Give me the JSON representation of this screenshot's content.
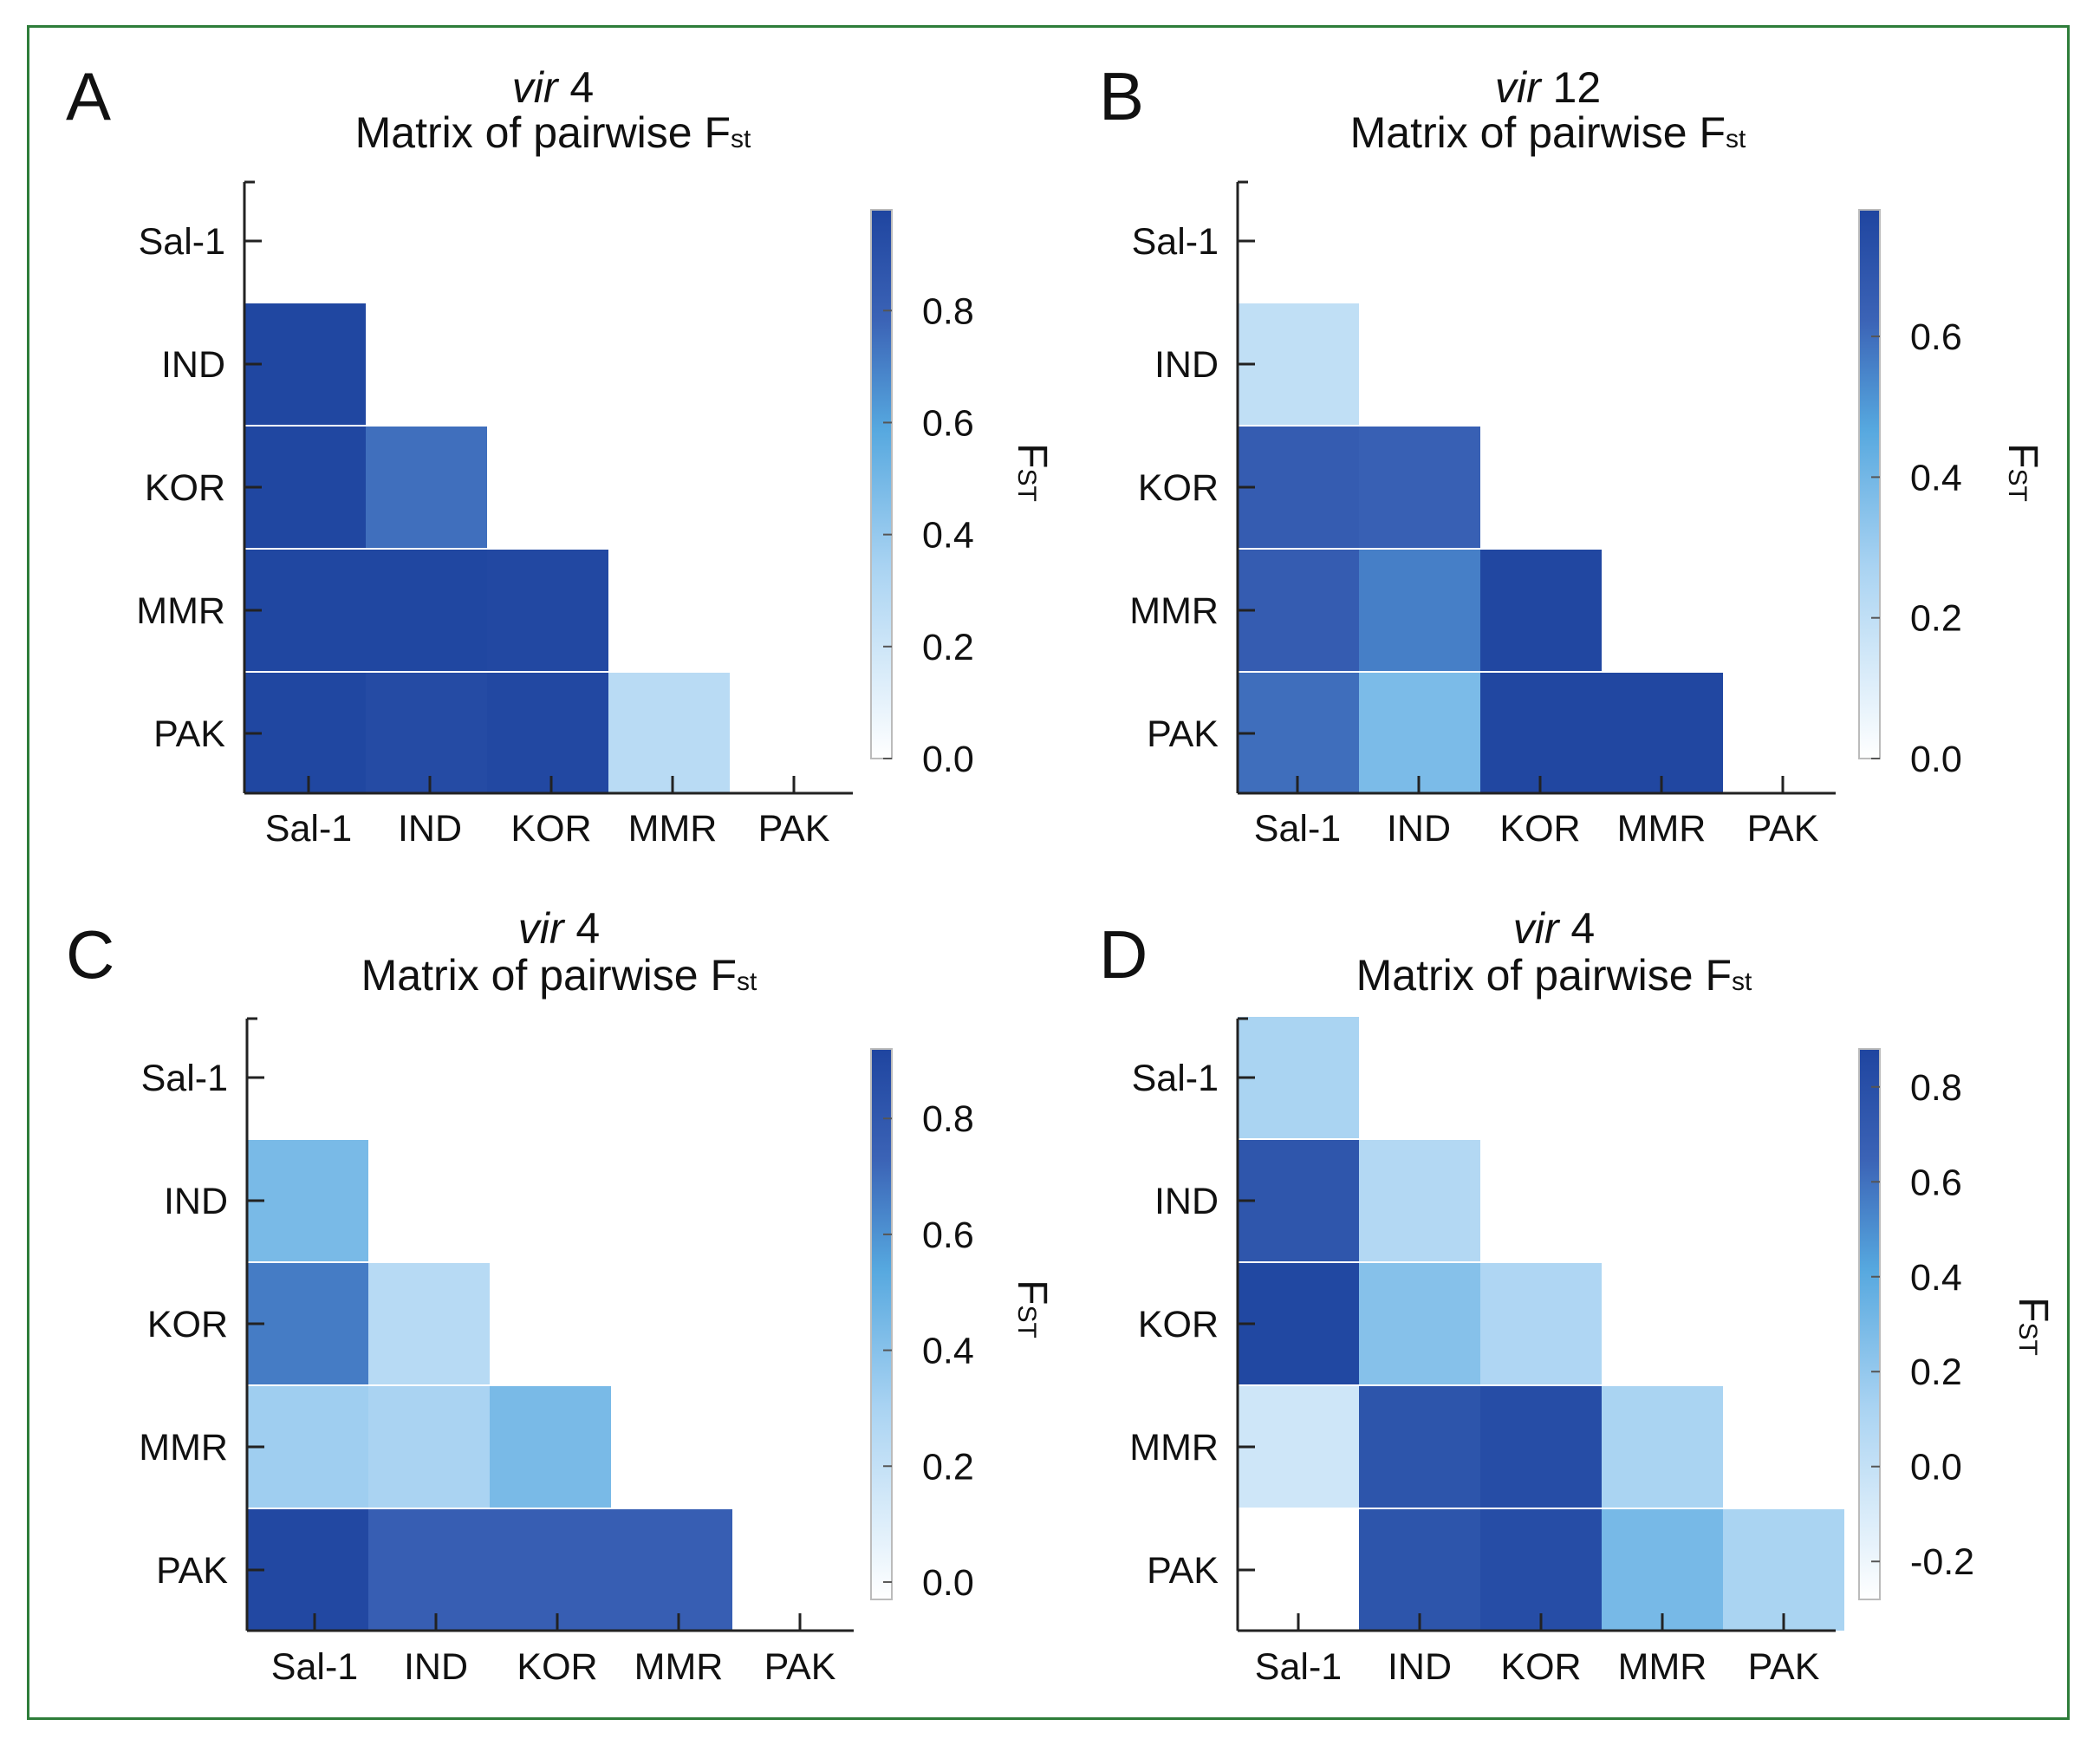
{
  "colors": {
    "frame": "#2e7d3a",
    "low": "#ffffff",
    "high": "#1f45a0",
    "axis": "#222222"
  },
  "charts": [
    {
      "panel_label": "A",
      "gene_italic": "vir",
      "gene_num": "4",
      "title_main": "Matrix of pairwise F",
      "title_sub": "st",
      "colorbar_label_main": "F",
      "colorbar_label_sub": "ST",
      "x_tick_labels": [
        "Sal-1",
        "IND",
        "KOR",
        "MMR",
        "PAK"
      ],
      "y_tick_labels": [
        "Sal-1",
        "IND",
        "KOR",
        "MMR",
        "PAK"
      ],
      "colorbar_tick_labels": [
        "0.0",
        "0.2",
        "0.4",
        "0.6",
        "0.8"
      ]
    },
    {
      "panel_label": "B",
      "gene_italic": "vir",
      "gene_num": "12",
      "title_main": "Matrix of pairwise F",
      "title_sub": "st",
      "colorbar_label_main": "F",
      "colorbar_label_sub": "ST",
      "x_tick_labels": [
        "Sal-1",
        "IND",
        "KOR",
        "MMR",
        "PAK"
      ],
      "y_tick_labels": [
        "Sal-1",
        "IND",
        "KOR",
        "MMR",
        "PAK"
      ],
      "colorbar_tick_labels": [
        "0.0",
        "0.2",
        "0.4",
        "0.6"
      ]
    },
    {
      "panel_label": "C",
      "gene_italic": "vir",
      "gene_num": "4",
      "title_main": "Matrix of pairwise F",
      "title_sub": "st",
      "colorbar_label_main": "F",
      "colorbar_label_sub": "ST",
      "x_tick_labels": [
        "Sal-1",
        "IND",
        "KOR",
        "MMR",
        "PAK"
      ],
      "y_tick_labels": [
        "Sal-1",
        "IND",
        "KOR",
        "MMR",
        "PAK"
      ],
      "colorbar_tick_labels": [
        "0.0",
        "0.2",
        "0.4",
        "0.6",
        "0.8"
      ]
    },
    {
      "panel_label": "D",
      "gene_italic": "vir",
      "gene_num": "4",
      "title_main": "Matrix of pairwise F",
      "title_sub": "st",
      "colorbar_label_main": "F",
      "colorbar_label_sub": "ST",
      "x_tick_labels": [
        "Sal-1",
        "IND",
        "KOR",
        "MMR",
        "PAK"
      ],
      "y_tick_labels": [
        "Sal-1",
        "IND",
        "KOR",
        "MMR",
        "PAK"
      ],
      "colorbar_tick_labels": [
        "-0.2",
        "0.0",
        "0.2",
        "0.4",
        "0.6",
        "0.8"
      ]
    }
  ],
  "chart_data": [
    {
      "type": "heatmap",
      "panel": "A",
      "title": "vir 4 Matrix of pairwise Fst",
      "x_categories": [
        "Sal-1",
        "IND",
        "KOR",
        "MMR",
        "PAK"
      ],
      "y_categories": [
        "Sal-1",
        "IND",
        "KOR",
        "MMR",
        "PAK"
      ],
      "colorbar": {
        "label": "FST",
        "range": [
          0.0,
          0.98
        ],
        "ticks": [
          0.0,
          0.2,
          0.4,
          0.6,
          0.8
        ]
      },
      "cells": [
        {
          "row": "IND",
          "col": "Sal-1",
          "value": 0.97
        },
        {
          "row": "KOR",
          "col": "Sal-1",
          "value": 0.97
        },
        {
          "row": "KOR",
          "col": "IND",
          "value": 0.75
        },
        {
          "row": "MMR",
          "col": "Sal-1",
          "value": 0.97
        },
        {
          "row": "MMR",
          "col": "IND",
          "value": 0.97
        },
        {
          "row": "MMR",
          "col": "KOR",
          "value": 0.96
        },
        {
          "row": "PAK",
          "col": "Sal-1",
          "value": 0.97
        },
        {
          "row": "PAK",
          "col": "IND",
          "value": 0.94
        },
        {
          "row": "PAK",
          "col": "KOR",
          "value": 0.96
        },
        {
          "row": "PAK",
          "col": "MMR",
          "value": 0.28
        }
      ]
    },
    {
      "type": "heatmap",
      "panel": "B",
      "title": "vir 12 Matrix of pairwise Fst",
      "x_categories": [
        "Sal-1",
        "IND",
        "KOR",
        "MMR",
        "PAK"
      ],
      "y_categories": [
        "Sal-1",
        "IND",
        "KOR",
        "MMR",
        "PAK"
      ],
      "colorbar": {
        "label": "FST",
        "range": [
          0.0,
          0.78
        ],
        "ticks": [
          0.0,
          0.2,
          0.4,
          0.6
        ]
      },
      "cells": [
        {
          "row": "IND",
          "col": "Sal-1",
          "value": 0.2
        },
        {
          "row": "KOR",
          "col": "Sal-1",
          "value": 0.66
        },
        {
          "row": "KOR",
          "col": "IND",
          "value": 0.64
        },
        {
          "row": "MMR",
          "col": "Sal-1",
          "value": 0.66
        },
        {
          "row": "MMR",
          "col": "IND",
          "value": 0.56
        },
        {
          "row": "MMR",
          "col": "KOR",
          "value": 0.77
        },
        {
          "row": "PAK",
          "col": "Sal-1",
          "value": 0.6
        },
        {
          "row": "PAK",
          "col": "IND",
          "value": 0.38
        },
        {
          "row": "PAK",
          "col": "KOR",
          "value": 0.77
        },
        {
          "row": "PAK",
          "col": "MMR",
          "value": 0.77
        }
      ]
    },
    {
      "type": "heatmap",
      "panel": "C",
      "title": "vir 4 Matrix of pairwise Fst",
      "x_categories": [
        "Sal-1",
        "IND",
        "KOR",
        "MMR",
        "PAK"
      ],
      "y_categories": [
        "Sal-1",
        "IND",
        "KOR",
        "MMR",
        "PAK"
      ],
      "colorbar": {
        "label": "FST",
        "range": [
          -0.03,
          0.92
        ],
        "ticks": [
          0.0,
          0.2,
          0.4,
          0.6,
          0.8
        ]
      },
      "cells": [
        {
          "row": "IND",
          "col": "Sal-1",
          "value": 0.44
        },
        {
          "row": "KOR",
          "col": "Sal-1",
          "value": 0.66
        },
        {
          "row": "KOR",
          "col": "IND",
          "value": 0.25
        },
        {
          "row": "MMR",
          "col": "Sal-1",
          "value": 0.33
        },
        {
          "row": "MMR",
          "col": "IND",
          "value": 0.3
        },
        {
          "row": "MMR",
          "col": "KOR",
          "value": 0.44
        },
        {
          "row": "PAK",
          "col": "Sal-1",
          "value": 0.9
        },
        {
          "row": "PAK",
          "col": "IND",
          "value": 0.76
        },
        {
          "row": "PAK",
          "col": "KOR",
          "value": 0.76
        },
        {
          "row": "PAK",
          "col": "MMR",
          "value": 0.76
        }
      ]
    },
    {
      "type": "heatmap",
      "panel": "D",
      "title": "vir 4 Matrix of pairwise Fst",
      "x_categories": [
        "Sal-1",
        "IND",
        "KOR",
        "MMR",
        "PAK"
      ],
      "y_categories": [
        "Sal-1",
        "IND",
        "KOR",
        "MMR",
        "PAK"
      ],
      "colorbar": {
        "label": "FST",
        "range": [
          -0.28,
          0.88
        ],
        "ticks": [
          -0.2,
          0.0,
          0.2,
          0.4,
          0.6,
          0.8
        ]
      },
      "cells": [
        {
          "row": "Sal-1",
          "col": "Sal-1",
          "value": 0.12
        },
        {
          "row": "IND",
          "col": "Sal-1",
          "value": 0.75
        },
        {
          "row": "IND",
          "col": "IND",
          "value": 0.08
        },
        {
          "row": "KOR",
          "col": "Sal-1",
          "value": 0.86
        },
        {
          "row": "KOR",
          "col": "IND",
          "value": 0.25
        },
        {
          "row": "KOR",
          "col": "KOR",
          "value": 0.1
        },
        {
          "row": "MMR",
          "col": "Sal-1",
          "value": -0.05
        },
        {
          "row": "MMR",
          "col": "IND",
          "value": 0.76
        },
        {
          "row": "MMR",
          "col": "KOR",
          "value": 0.82
        },
        {
          "row": "MMR",
          "col": "MMR",
          "value": 0.12
        },
        {
          "row": "PAK",
          "col": "Sal-1",
          "value": -0.28
        },
        {
          "row": "PAK",
          "col": "IND",
          "value": 0.76
        },
        {
          "row": "PAK",
          "col": "KOR",
          "value": 0.82
        },
        {
          "row": "PAK",
          "col": "MMR",
          "value": 0.3
        },
        {
          "row": "PAK",
          "col": "PAK",
          "value": 0.12
        }
      ]
    }
  ]
}
